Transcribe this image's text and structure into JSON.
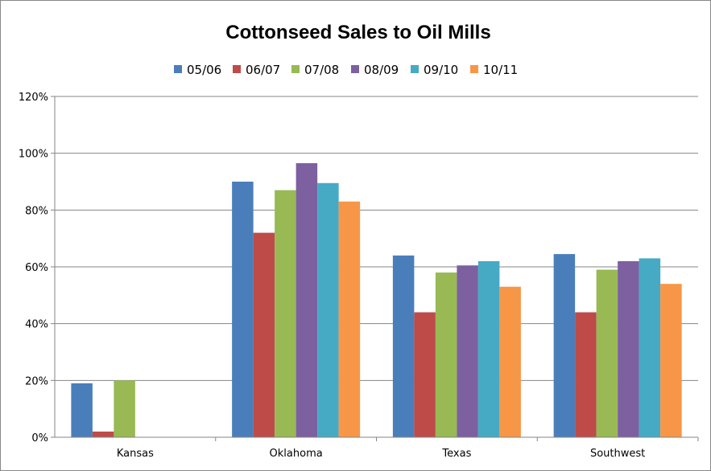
{
  "chart_data": {
    "type": "bar",
    "title": "Cottonseed Sales to Oil Mills",
    "xlabel": "",
    "ylabel": "",
    "ylim": [
      0,
      120
    ],
    "y_unit": "%",
    "y_ticks": [
      "0%",
      "20%",
      "40%",
      "60%",
      "80%",
      "100%",
      "120%"
    ],
    "grid": true,
    "legend_position": "top",
    "categories": [
      "Kansas",
      "Oklahoma",
      "Texas",
      "Southwest"
    ],
    "series": [
      {
        "name": "05/06",
        "color": "#4A7EBB",
        "values": [
          19,
          90,
          64,
          64.5
        ]
      },
      {
        "name": "06/07",
        "color": "#BE4B48",
        "values": [
          2,
          72,
          44,
          44
        ]
      },
      {
        "name": "07/08",
        "color": "#98B954",
        "values": [
          20,
          87,
          58,
          59
        ]
      },
      {
        "name": "08/09",
        "color": "#7D60A0",
        "values": [
          0,
          96.5,
          60.5,
          62
        ]
      },
      {
        "name": "09/10",
        "color": "#46AAC5",
        "values": [
          0,
          89.5,
          62,
          63
        ]
      },
      {
        "name": "10/11",
        "color": "#F79646",
        "values": [
          0,
          83,
          53,
          54
        ]
      }
    ]
  }
}
